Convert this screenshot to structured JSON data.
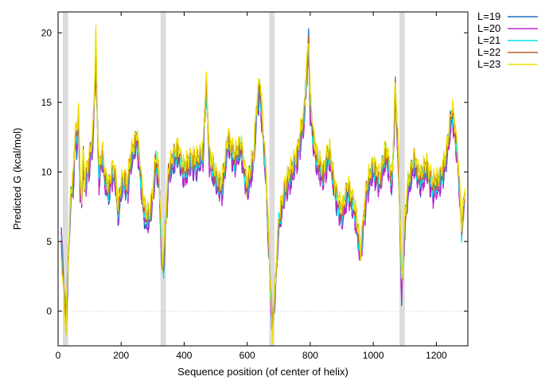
{
  "chart_data": {
    "type": "line",
    "title": "",
    "xlabel": "Sequence position (of center of helix)",
    "ylabel": "Predicted  G (kcal/mol)",
    "xlim": [
      0,
      1300
    ],
    "ylim": [
      -2.5,
      21.5
    ],
    "xticks": [
      0,
      200,
      400,
      600,
      800,
      1000,
      1200
    ],
    "yticks": [
      0,
      5,
      10,
      15,
      20
    ],
    "zero_line": true,
    "legend_position": "right-outside-top",
    "shaded_regions": [
      [
        15,
        32
      ],
      [
        325,
        342
      ],
      [
        670,
        687
      ],
      [
        1083,
        1100
      ]
    ],
    "anchor_x": [
      10,
      25,
      30,
      40,
      50,
      55,
      60,
      65,
      70,
      75,
      80,
      85,
      90,
      100,
      110,
      115,
      120,
      125,
      130,
      140,
      150,
      160,
      170,
      180,
      190,
      200,
      210,
      220,
      230,
      240,
      250,
      260,
      270,
      280,
      290,
      300,
      310,
      320,
      330,
      335,
      340,
      350,
      360,
      380,
      400,
      420,
      440,
      460,
      470,
      480,
      500,
      520,
      540,
      560,
      580,
      600,
      620,
      630,
      640,
      650,
      660,
      670,
      680,
      690,
      700,
      720,
      740,
      760,
      780,
      795,
      800,
      810,
      820,
      840,
      860,
      880,
      900,
      920,
      940,
      960,
      970,
      980,
      1000,
      1020,
      1040,
      1060,
      1070,
      1080,
      1090,
      1100,
      1110,
      1130,
      1150,
      1170,
      1190,
      1210,
      1230,
      1250,
      1260,
      1270,
      1280,
      1290
    ],
    "series": [
      {
        "name": "L=19",
        "color": "#1f6fc0",
        "values": [
          5.8,
          -0.8,
          1.5,
          8.0,
          9.5,
          12.6,
          11.5,
          14.0,
          8.5,
          7.8,
          10.5,
          8.8,
          9.5,
          10.5,
          12.0,
          15.0,
          18.5,
          13.0,
          9.5,
          11.0,
          9.0,
          8.0,
          9.5,
          9.8,
          6.5,
          8.5,
          9.0,
          8.5,
          10.5,
          11.0,
          12.3,
          10.0,
          7.0,
          6.0,
          6.5,
          8.0,
          10.5,
          9.0,
          3.0,
          2.8,
          5.5,
          9.5,
          10.0,
          11.0,
          9.5,
          10.5,
          10.0,
          11.0,
          16.5,
          10.5,
          9.0,
          8.5,
          12.0,
          10.5,
          11.5,
          8.5,
          10.5,
          14.0,
          15.5,
          12.5,
          9.0,
          3.5,
          -1.5,
          1.5,
          6.0,
          8.5,
          9.5,
          11.0,
          13.5,
          19.5,
          14.5,
          12.0,
          10.5,
          9.5,
          11.0,
          8.0,
          6.5,
          8.5,
          7.0,
          3.8,
          6.5,
          8.5,
          10.0,
          9.0,
          11.0,
          9.0,
          15.5,
          10.5,
          1.2,
          6.0,
          8.5,
          10.5,
          9.0,
          10.0,
          8.5,
          9.0,
          10.5,
          14.0,
          12.5,
          10.0,
          6.0,
          8.0
        ]
      },
      {
        "name": "L=20",
        "color": "#c020d0",
        "values": [
          5.5,
          -1.0,
          1.8,
          8.0,
          9.2,
          12.8,
          11.8,
          14.3,
          8.2,
          7.5,
          10.8,
          8.5,
          9.3,
          10.3,
          11.8,
          14.7,
          17.5,
          12.8,
          9.2,
          10.8,
          8.8,
          8.2,
          9.3,
          9.5,
          6.8,
          8.2,
          9.3,
          8.2,
          10.3,
          11.2,
          12.0,
          9.8,
          7.2,
          6.3,
          6.2,
          7.8,
          10.2,
          9.3,
          3.2,
          3.0,
          5.3,
          9.2,
          10.3,
          11.2,
          9.2,
          10.3,
          10.2,
          10.8,
          16.8,
          10.2,
          9.2,
          8.3,
          11.8,
          10.3,
          11.3,
          8.3,
          10.2,
          14.2,
          15.8,
          12.3,
          9.2,
          3.3,
          -1.2,
          1.8,
          5.8,
          8.3,
          9.2,
          10.8,
          13.2,
          18.8,
          14.2,
          11.8,
          10.2,
          9.2,
          10.8,
          8.2,
          6.2,
          8.3,
          6.8,
          3.5,
          6.2,
          8.2,
          9.8,
          8.8,
          10.8,
          8.8,
          15.2,
          10.2,
          1.0,
          5.8,
          8.2,
          10.3,
          8.8,
          9.8,
          8.2,
          8.8,
          10.3,
          13.8,
          12.2,
          9.8,
          5.8,
          7.8
        ]
      },
      {
        "name": "L=21",
        "color": "#00e5e5",
        "values": [
          5.0,
          -1.2,
          2.0,
          8.2,
          9.8,
          13.0,
          12.0,
          14.5,
          8.8,
          8.0,
          11.0,
          9.0,
          9.8,
          10.8,
          12.3,
          15.3,
          18.0,
          13.3,
          9.8,
          11.3,
          9.3,
          8.5,
          9.8,
          10.0,
          7.0,
          8.8,
          9.5,
          8.8,
          10.8,
          11.5,
          12.5,
          10.3,
          7.5,
          6.5,
          6.8,
          8.3,
          10.8,
          9.5,
          3.5,
          3.2,
          5.8,
          9.8,
          10.5,
          11.5,
          9.8,
          10.8,
          10.5,
          11.3,
          15.8,
          10.8,
          9.5,
          8.8,
          12.3,
          10.8,
          11.8,
          8.8,
          10.8,
          14.5,
          16.0,
          12.8,
          9.5,
          3.8,
          -1.0,
          2.0,
          6.2,
          8.8,
          9.8,
          11.3,
          13.8,
          19.0,
          14.8,
          12.3,
          10.8,
          9.8,
          11.3,
          8.5,
          6.8,
          8.8,
          7.2,
          4.0,
          6.8,
          8.8,
          10.3,
          9.3,
          11.3,
          9.3,
          15.8,
          10.8,
          1.5,
          6.3,
          8.8,
          10.8,
          9.3,
          10.3,
          8.8,
          9.3,
          10.8,
          14.3,
          12.8,
          10.3,
          5.5,
          8.3
        ]
      },
      {
        "name": "L=22",
        "color": "#b5602a",
        "values": [
          4.5,
          -1.3,
          2.2,
          8.3,
          10.0,
          13.2,
          12.2,
          14.8,
          9.0,
          8.2,
          11.2,
          9.2,
          10.0,
          11.0,
          12.5,
          15.5,
          18.8,
          13.5,
          10.0,
          11.5,
          9.5,
          8.8,
          10.0,
          10.2,
          7.2,
          9.0,
          9.8,
          9.0,
          11.0,
          11.8,
          12.8,
          10.5,
          7.8,
          6.8,
          7.0,
          8.5,
          11.0,
          9.8,
          3.8,
          3.5,
          6.0,
          10.0,
          10.8,
          11.8,
          10.0,
          11.0,
          10.8,
          11.5,
          16.2,
          11.0,
          9.8,
          9.0,
          12.5,
          11.0,
          12.0,
          9.0,
          11.0,
          14.8,
          16.3,
          13.0,
          9.8,
          4.0,
          -0.8,
          2.2,
          6.5,
          9.0,
          10.0,
          11.5,
          14.0,
          19.8,
          15.0,
          12.5,
          11.0,
          10.0,
          11.5,
          8.8,
          7.0,
          9.0,
          7.5,
          4.2,
          7.0,
          9.0,
          10.5,
          9.5,
          11.5,
          9.5,
          16.0,
          11.0,
          1.8,
          6.5,
          9.0,
          11.0,
          9.5,
          10.5,
          9.0,
          9.5,
          11.0,
          14.5,
          13.0,
          10.5,
          5.8,
          8.5
        ]
      },
      {
        "name": "L=23",
        "color": "#f0e000",
        "values": [
          4.0,
          -1.5,
          2.5,
          8.5,
          10.3,
          13.5,
          12.5,
          15.3,
          9.3,
          8.5,
          11.5,
          9.5,
          10.3,
          11.3,
          12.8,
          16.0,
          20.0,
          13.8,
          10.3,
          11.8,
          9.8,
          9.0,
          10.3,
          10.5,
          7.5,
          9.3,
          10.0,
          9.3,
          11.3,
          12.0,
          13.0,
          10.8,
          8.0,
          7.0,
          7.3,
          8.8,
          11.3,
          10.0,
          4.0,
          3.8,
          6.3,
          10.3,
          11.0,
          12.0,
          10.3,
          11.3,
          11.0,
          11.8,
          17.0,
          11.3,
          10.0,
          9.3,
          12.8,
          11.3,
          12.3,
          9.3,
          11.3,
          15.0,
          17.0,
          13.3,
          10.0,
          4.3,
          -1.8,
          2.5,
          6.8,
          9.3,
          10.3,
          11.8,
          14.3,
          20.0,
          15.5,
          12.8,
          11.3,
          10.3,
          11.8,
          9.0,
          7.3,
          9.3,
          7.8,
          4.5,
          7.3,
          9.3,
          10.8,
          9.8,
          11.8,
          9.8,
          16.5,
          11.3,
          2.0,
          6.8,
          9.3,
          11.3,
          9.8,
          10.8,
          9.3,
          9.8,
          11.3,
          14.8,
          13.3,
          10.8,
          6.0,
          8.8
        ]
      }
    ]
  }
}
